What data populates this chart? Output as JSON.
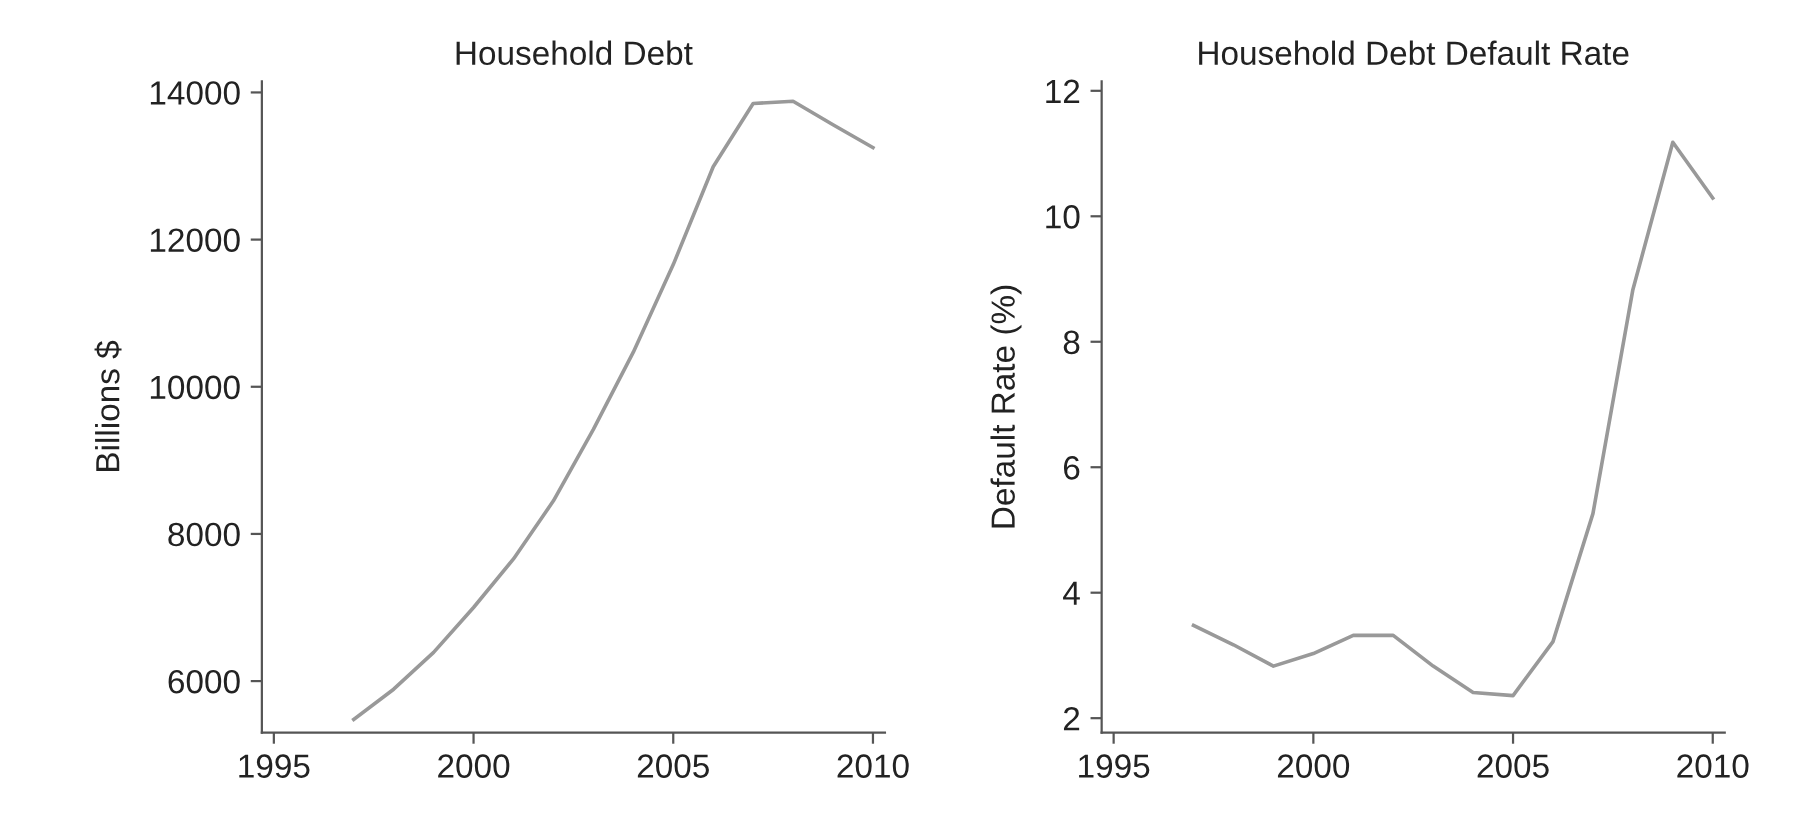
{
  "chart_data": [
    {
      "type": "line",
      "title": "Household Debt",
      "ylabel": "Billions $",
      "x": [
        1997,
        1998,
        1999,
        2000,
        2001,
        2002,
        2003,
        2004,
        2005,
        2006,
        2007,
        2008,
        2009,
        2010
      ],
      "series": [
        {
          "color": "#999999",
          "values": [
            5480,
            5890,
            6390,
            7000,
            7660,
            8450,
            9420,
            10470,
            11660,
            12990,
            13850,
            13880,
            13560,
            13250
          ]
        }
      ],
      "xlim": [
        1994.7,
        2010.3
      ],
      "xticks": [
        1995,
        2000,
        2005,
        2010
      ],
      "ylim": [
        5300,
        14150
      ],
      "yticks": [
        6000,
        8000,
        10000,
        12000,
        14000
      ],
      "grid": false,
      "legend": false
    },
    {
      "type": "line",
      "title": "Household Debt Default Rate",
      "ylabel": "Default Rate (%)",
      "x": [
        1997,
        1998,
        1999,
        2000,
        2001,
        2002,
        2003,
        2004,
        2005,
        2006,
        2007,
        2008,
        2009,
        2010
      ],
      "series": [
        {
          "color": "#999999",
          "values": [
            3.48,
            3.17,
            2.83,
            3.03,
            3.32,
            3.32,
            2.83,
            2.41,
            2.36,
            3.22,
            5.26,
            8.83,
            11.18,
            10.29
          ]
        }
      ],
      "xlim": [
        1994.7,
        2010.3
      ],
      "xticks": [
        1995,
        2000,
        2005,
        2010
      ],
      "ylim": [
        1.77,
        12.15
      ],
      "yticks": [
        2,
        4,
        6,
        8,
        10,
        12
      ],
      "grid": false,
      "legend": false
    }
  ]
}
